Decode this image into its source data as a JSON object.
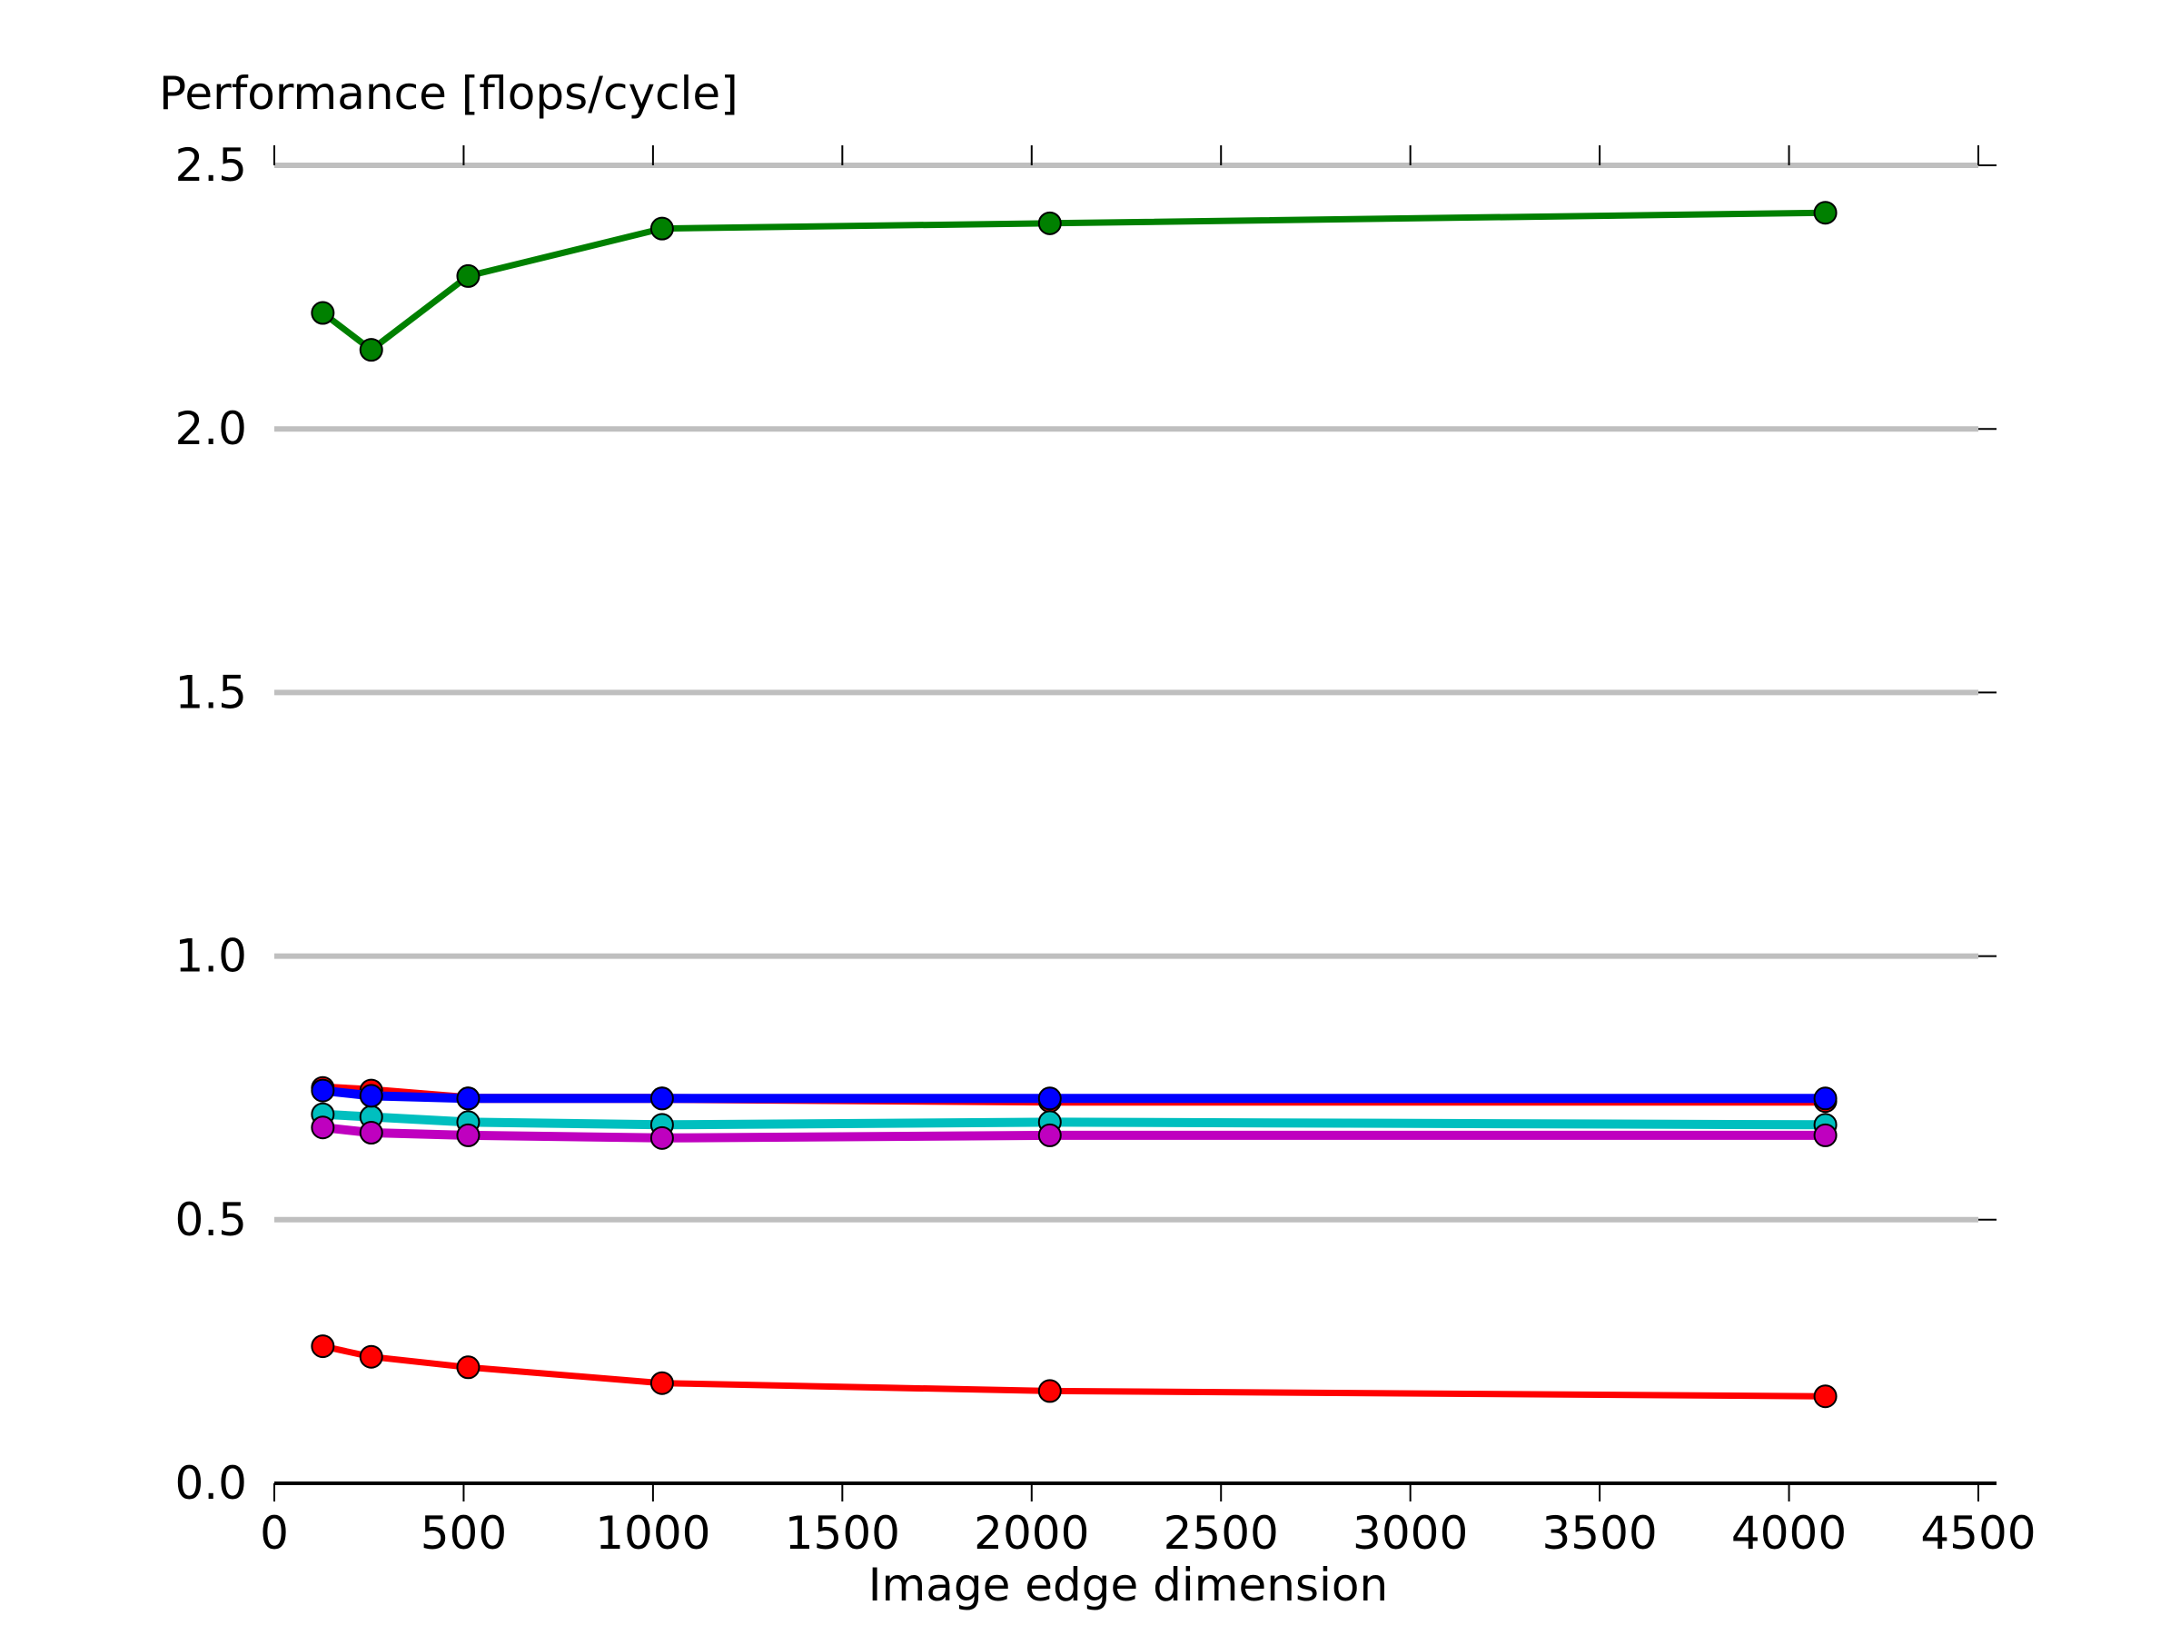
{
  "chart_data": {
    "type": "line",
    "title": "",
    "xlabel": "Image edge dimension",
    "ylabel": "Performance [flops/cycle]",
    "xlim": [
      0,
      4500
    ],
    "ylim": [
      0,
      2.5
    ],
    "xticks": [
      "0",
      "500",
      "1000",
      "1500",
      "2000",
      "2500",
      "3000",
      "3500",
      "4000",
      "4500"
    ],
    "yticks": [
      "0.0",
      "0.5",
      "1.0",
      "1.5",
      "2.0",
      "2.5"
    ],
    "grid": "horizontal",
    "legend": "none",
    "x": [
      128,
      256,
      512,
      1024,
      2048,
      4096
    ],
    "series": [
      {
        "color": "#008000",
        "values": [
          2.22,
          2.15,
          2.29,
          2.38,
          2.39,
          2.41
        ]
      },
      {
        "color": "#ff0000",
        "values": [
          0.75,
          0.745,
          0.73,
          0.73,
          0.725,
          0.725
        ]
      },
      {
        "color": "#00bfbf",
        "values": [
          0.7,
          0.695,
          0.685,
          0.68,
          0.685,
          0.68
        ]
      },
      {
        "color": "#bf00bf",
        "values": [
          0.675,
          0.665,
          0.66,
          0.655,
          0.66,
          0.66
        ]
      },
      {
        "color": "#0000ff",
        "values": [
          0.745,
          0.735,
          0.73,
          0.73,
          0.73,
          0.73
        ]
      },
      {
        "color": "#ff0000",
        "values": [
          0.26,
          0.24,
          0.22,
          0.19,
          0.175,
          0.165
        ]
      }
    ]
  }
}
